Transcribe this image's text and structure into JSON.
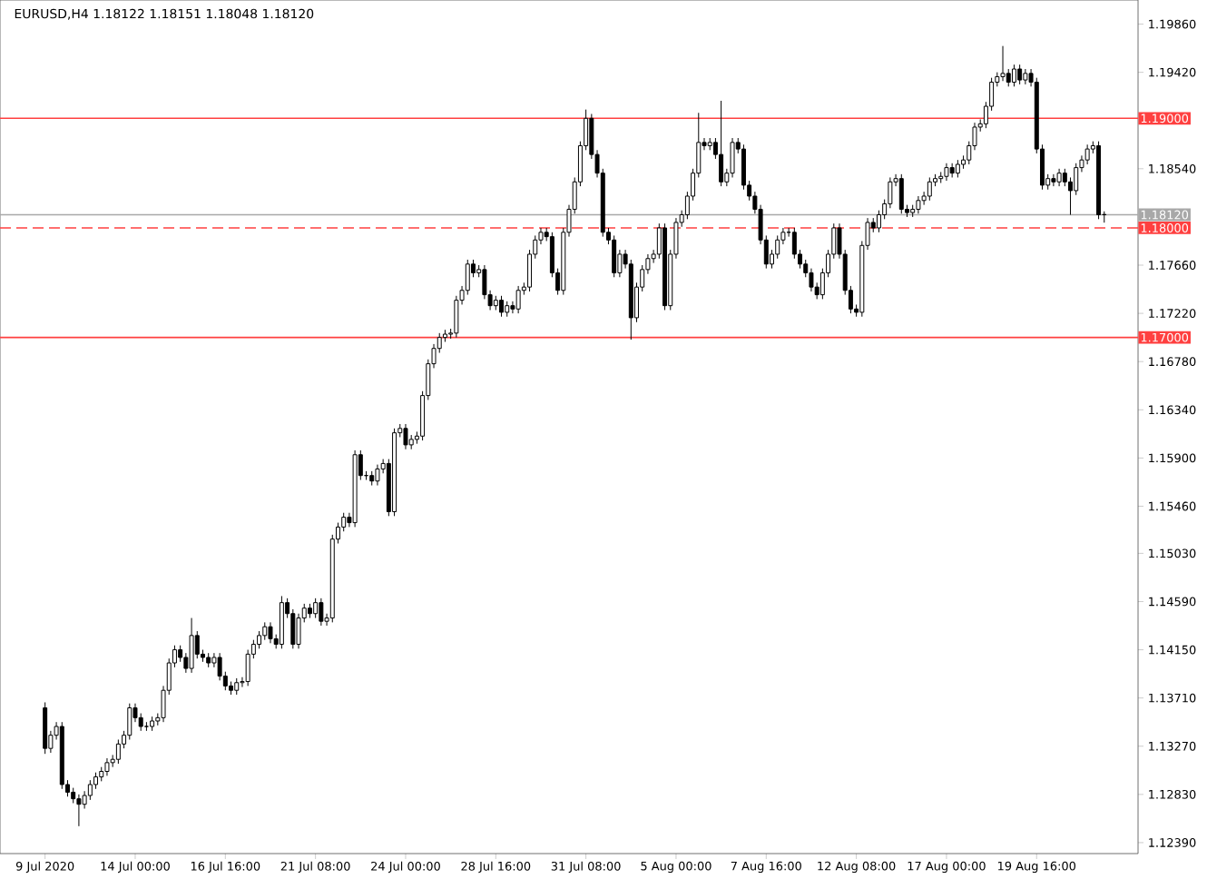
{
  "chart_data": {
    "type": "candlestick",
    "title": "EURUSD,H4  1.18122 1.18151 1.18048 1.18120",
    "categories": [
      "9 Jul 2020",
      null,
      null,
      null,
      null,
      null,
      null,
      null,
      null,
      null,
      null,
      null,
      null,
      null,
      null,
      null,
      "14 Jul 00:00",
      null,
      null,
      null,
      null,
      null,
      null,
      null,
      null,
      null,
      null,
      null,
      null,
      null,
      null,
      null,
      "16 Jul 16:00",
      null,
      null,
      null,
      null,
      null,
      null,
      null,
      null,
      null,
      null,
      null,
      null,
      null,
      null,
      null,
      "21 Jul 08:00",
      null,
      null,
      null,
      null,
      null,
      null,
      null,
      null,
      null,
      null,
      null,
      null,
      null,
      null,
      null,
      "24 Jul 00:00",
      null,
      null,
      null,
      null,
      null,
      null,
      null,
      null,
      null,
      null,
      null,
      null,
      null,
      null,
      null,
      "28 Jul 16:00",
      null,
      null,
      null,
      null,
      null,
      null,
      null,
      null,
      null,
      null,
      null,
      null,
      null,
      null,
      null,
      "31 Jul 08:00",
      null,
      null,
      null,
      null,
      null,
      null,
      null,
      null,
      null,
      null,
      null,
      null,
      null,
      null,
      null,
      "5 Aug 00:00",
      null,
      null,
      null,
      null,
      null,
      null,
      null,
      null,
      null,
      null,
      null,
      null,
      null,
      null,
      null,
      "7 Aug 16:00",
      null,
      null,
      null,
      null,
      null,
      null,
      null,
      null,
      null,
      null,
      null,
      null,
      null,
      null,
      null,
      "12 Aug 08:00",
      null,
      null,
      null,
      null,
      null,
      null,
      null,
      null,
      null,
      null,
      null,
      null,
      null,
      null,
      null,
      "17 Aug 00:00",
      null,
      null,
      null,
      null,
      null,
      null,
      null,
      null,
      null,
      null,
      null,
      null,
      null,
      null,
      null,
      "19 Aug 16:00",
      null,
      null,
      null,
      null,
      null,
      null,
      null,
      null,
      null,
      null,
      null,
      null
    ],
    "ohlc": [
      [
        1.1362,
        1.1367,
        1.132,
        1.1325
      ],
      [
        1.1325,
        1.1341,
        1.1321,
        1.1337
      ],
      [
        1.1337,
        1.1349,
        1.1333,
        1.1345
      ],
      [
        1.1345,
        1.1349,
        1.1288,
        1.1292
      ],
      [
        1.1292,
        1.1296,
        1.1281,
        1.1285
      ],
      [
        1.1285,
        1.1289,
        1.1275,
        1.1279
      ],
      [
        1.1279,
        1.1283,
        1.1254,
        1.1274
      ],
      [
        1.1274,
        1.1286,
        1.127,
        1.1282
      ],
      [
        1.1282,
        1.1296,
        1.1278,
        1.1292
      ],
      [
        1.1292,
        1.1303,
        1.1288,
        1.1299
      ],
      [
        1.1299,
        1.1308,
        1.1295,
        1.1304
      ],
      [
        1.1304,
        1.1316,
        1.13,
        1.1312
      ],
      [
        1.1312,
        1.1319,
        1.1308,
        1.1315
      ],
      [
        1.1315,
        1.1333,
        1.1311,
        1.1329
      ],
      [
        1.1329,
        1.1341,
        1.1325,
        1.1337
      ],
      [
        1.1337,
        1.1366,
        1.1333,
        1.1362
      ],
      [
        1.1362,
        1.1366,
        1.1349,
        1.1353
      ],
      [
        1.1353,
        1.1357,
        1.1341,
        1.1345
      ],
      [
        1.1345,
        1.1349,
        1.1341,
        1.1345
      ],
      [
        1.1345,
        1.1354,
        1.1341,
        1.135
      ],
      [
        1.135,
        1.1357,
        1.1346,
        1.1353
      ],
      [
        1.1353,
        1.1382,
        1.1349,
        1.1378
      ],
      [
        1.1378,
        1.1407,
        1.1374,
        1.1403
      ],
      [
        1.1403,
        1.1419,
        1.1399,
        1.1415
      ],
      [
        1.1415,
        1.1419,
        1.1404,
        1.1408
      ],
      [
        1.1408,
        1.1412,
        1.1394,
        1.1398
      ],
      [
        1.1398,
        1.1444,
        1.1394,
        1.1428
      ],
      [
        1.1428,
        1.1432,
        1.1407,
        1.1411
      ],
      [
        1.1411,
        1.1415,
        1.1404,
        1.1408
      ],
      [
        1.1408,
        1.1412,
        1.1399,
        1.1403
      ],
      [
        1.1403,
        1.1412,
        1.1399,
        1.1408
      ],
      [
        1.1408,
        1.1412,
        1.1387,
        1.1391
      ],
      [
        1.1391,
        1.1395,
        1.1378,
        1.1382
      ],
      [
        1.1382,
        1.1386,
        1.1374,
        1.1378
      ],
      [
        1.1378,
        1.1389,
        1.1374,
        1.1385
      ],
      [
        1.1385,
        1.139,
        1.1381,
        1.1386
      ],
      [
        1.1386,
        1.1415,
        1.1382,
        1.1411
      ],
      [
        1.1411,
        1.1424,
        1.1407,
        1.142
      ],
      [
        1.142,
        1.1432,
        1.1416,
        1.1428
      ],
      [
        1.1428,
        1.144,
        1.1424,
        1.1436
      ],
      [
        1.1436,
        1.144,
        1.1421,
        1.1425
      ],
      [
        1.1425,
        1.1429,
        1.1416,
        1.142
      ],
      [
        1.142,
        1.1464,
        1.1416,
        1.1458
      ],
      [
        1.1458,
        1.1462,
        1.1444,
        1.1448
      ],
      [
        1.1448,
        1.1452,
        1.1416,
        1.142
      ],
      [
        1.142,
        1.1448,
        1.1416,
        1.1444
      ],
      [
        1.1444,
        1.1457,
        1.144,
        1.1453
      ],
      [
        1.1453,
        1.1457,
        1.1444,
        1.1448
      ],
      [
        1.1448,
        1.1462,
        1.1444,
        1.1458
      ],
      [
        1.1458,
        1.1462,
        1.1437,
        1.1441
      ],
      [
        1.1441,
        1.1448,
        1.1437,
        1.1444
      ],
      [
        1.1444,
        1.152,
        1.144,
        1.1516
      ],
      [
        1.1516,
        1.1531,
        1.1512,
        1.1527
      ],
      [
        1.1527,
        1.154,
        1.1523,
        1.1536
      ],
      [
        1.1536,
        1.154,
        1.1527,
        1.1531
      ],
      [
        1.1531,
        1.1597,
        1.1527,
        1.1593
      ],
      [
        1.1593,
        1.1597,
        1.157,
        1.1574
      ],
      [
        1.1574,
        1.1578,
        1.157,
        1.1574
      ],
      [
        1.1574,
        1.1578,
        1.1565,
        1.1569
      ],
      [
        1.1569,
        1.1584,
        1.1565,
        1.158
      ],
      [
        1.158,
        1.1589,
        1.1576,
        1.1585
      ],
      [
        1.1585,
        1.1589,
        1.1537,
        1.1541
      ],
      [
        1.1541,
        1.1617,
        1.1537,
        1.1613
      ],
      [
        1.1613,
        1.1621,
        1.1609,
        1.1617
      ],
      [
        1.1617,
        1.1621,
        1.1598,
        1.1602
      ],
      [
        1.1602,
        1.1611,
        1.1598,
        1.1607
      ],
      [
        1.1607,
        1.1614,
        1.1603,
        1.161
      ],
      [
        1.161,
        1.1651,
        1.1606,
        1.1647
      ],
      [
        1.1647,
        1.168,
        1.1643,
        1.1676
      ],
      [
        1.1676,
        1.1694,
        1.1672,
        1.169
      ],
      [
        1.169,
        1.1704,
        1.1686,
        1.17
      ],
      [
        1.17,
        1.1707,
        1.1696,
        1.1703
      ],
      [
        1.1703,
        1.1708,
        1.1699,
        1.1704
      ],
      [
        1.1704,
        1.1738,
        1.17,
        1.1734
      ],
      [
        1.1734,
        1.1747,
        1.173,
        1.1743
      ],
      [
        1.1743,
        1.1771,
        1.1739,
        1.1767
      ],
      [
        1.1767,
        1.1771,
        1.1755,
        1.1759
      ],
      [
        1.1759,
        1.1766,
        1.1755,
        1.1762
      ],
      [
        1.1762,
        1.1766,
        1.1735,
        1.1739
      ],
      [
        1.1739,
        1.1743,
        1.1725,
        1.1729
      ],
      [
        1.1729,
        1.1738,
        1.1725,
        1.1734
      ],
      [
        1.1734,
        1.1738,
        1.1719,
        1.1723
      ],
      [
        1.1723,
        1.1733,
        1.1719,
        1.1729
      ],
      [
        1.1729,
        1.1733,
        1.1722,
        1.1726
      ],
      [
        1.1726,
        1.1747,
        1.1722,
        1.1743
      ],
      [
        1.1743,
        1.175,
        1.1739,
        1.1746
      ],
      [
        1.1746,
        1.178,
        1.1742,
        1.1776
      ],
      [
        1.1776,
        1.1793,
        1.1772,
        1.1789
      ],
      [
        1.1789,
        1.18,
        1.1785,
        1.1796
      ],
      [
        1.1796,
        1.18,
        1.1788,
        1.1792
      ],
      [
        1.1792,
        1.1796,
        1.1755,
        1.1759
      ],
      [
        1.1759,
        1.1763,
        1.1739,
        1.1743
      ],
      [
        1.1743,
        1.18,
        1.1739,
        1.1796
      ],
      [
        1.1796,
        1.1821,
        1.1792,
        1.1817
      ],
      [
        1.1817,
        1.1846,
        1.1813,
        1.1842
      ],
      [
        1.1842,
        1.1879,
        1.1838,
        1.1875
      ],
      [
        1.1875,
        1.1908,
        1.1871,
        1.19
      ],
      [
        1.19,
        1.1904,
        1.1863,
        1.1867
      ],
      [
        1.1867,
        1.1871,
        1.1846,
        1.185
      ],
      [
        1.185,
        1.1854,
        1.1792,
        1.1796
      ],
      [
        1.1796,
        1.18,
        1.1785,
        1.1789
      ],
      [
        1.1789,
        1.1793,
        1.1755,
        1.1759
      ],
      [
        1.1759,
        1.178,
        1.1755,
        1.1776
      ],
      [
        1.1776,
        1.178,
        1.1763,
        1.1767
      ],
      [
        1.1767,
        1.1771,
        1.1698,
        1.1718
      ],
      [
        1.1718,
        1.175,
        1.1714,
        1.1746
      ],
      [
        1.1746,
        1.1766,
        1.1742,
        1.1762
      ],
      [
        1.1762,
        1.1776,
        1.1758,
        1.1772
      ],
      [
        1.1772,
        1.178,
        1.1768,
        1.1776
      ],
      [
        1.1776,
        1.1804,
        1.1772,
        1.18
      ],
      [
        1.18,
        1.1804,
        1.1725,
        1.1729
      ],
      [
        1.1729,
        1.178,
        1.1725,
        1.1776
      ],
      [
        1.1776,
        1.1809,
        1.1772,
        1.1805
      ],
      [
        1.1805,
        1.1816,
        1.1801,
        1.1812
      ],
      [
        1.1812,
        1.1833,
        1.1808,
        1.1829
      ],
      [
        1.1829,
        1.1854,
        1.1825,
        1.185
      ],
      [
        1.185,
        1.1905,
        1.1846,
        1.1878
      ],
      [
        1.1878,
        1.1882,
        1.1871,
        1.1875
      ],
      [
        1.1875,
        1.1882,
        1.1871,
        1.1878
      ],
      [
        1.1878,
        1.1882,
        1.1863,
        1.1867
      ],
      [
        1.1867,
        1.1916,
        1.1838,
        1.1842
      ],
      [
        1.1842,
        1.1854,
        1.1838,
        1.185
      ],
      [
        1.185,
        1.1882,
        1.1846,
        1.1878
      ],
      [
        1.1878,
        1.1882,
        1.1868,
        1.1872
      ],
      [
        1.1872,
        1.1876,
        1.1835,
        1.1839
      ],
      [
        1.1839,
        1.1843,
        1.1825,
        1.1829
      ],
      [
        1.1829,
        1.1833,
        1.1813,
        1.1817
      ],
      [
        1.1817,
        1.1821,
        1.1785,
        1.1789
      ],
      [
        1.1789,
        1.1793,
        1.1763,
        1.1767
      ],
      [
        1.1767,
        1.178,
        1.1763,
        1.1776
      ],
      [
        1.1776,
        1.1793,
        1.1772,
        1.1789
      ],
      [
        1.1789,
        1.18,
        1.1785,
        1.1796
      ],
      [
        1.1796,
        1.18,
        1.1792,
        1.1796
      ],
      [
        1.1796,
        1.18,
        1.1772,
        1.1776
      ],
      [
        1.1776,
        1.178,
        1.1763,
        1.1767
      ],
      [
        1.1767,
        1.1771,
        1.1755,
        1.1759
      ],
      [
        1.1759,
        1.1763,
        1.1742,
        1.1746
      ],
      [
        1.1746,
        1.175,
        1.1735,
        1.1739
      ],
      [
        1.1739,
        1.1763,
        1.1735,
        1.1759
      ],
      [
        1.1759,
        1.178,
        1.1755,
        1.1776
      ],
      [
        1.1776,
        1.1804,
        1.1772,
        1.18
      ],
      [
        1.18,
        1.1804,
        1.1772,
        1.1776
      ],
      [
        1.1776,
        1.178,
        1.1739,
        1.1743
      ],
      [
        1.1743,
        1.1747,
        1.1722,
        1.1726
      ],
      [
        1.1726,
        1.173,
        1.1719,
        1.1723
      ],
      [
        1.1723,
        1.1788,
        1.1719,
        1.1784
      ],
      [
        1.1784,
        1.1809,
        1.178,
        1.1805
      ],
      [
        1.1805,
        1.1809,
        1.1796,
        1.18
      ],
      [
        1.18,
        1.1816,
        1.1796,
        1.1812
      ],
      [
        1.1812,
        1.1826,
        1.1808,
        1.1822
      ],
      [
        1.1822,
        1.1846,
        1.1818,
        1.1842
      ],
      [
        1.1842,
        1.1849,
        1.1838,
        1.1845
      ],
      [
        1.1845,
        1.1849,
        1.1813,
        1.1817
      ],
      [
        1.1817,
        1.1821,
        1.181,
        1.1814
      ],
      [
        1.1814,
        1.1821,
        1.181,
        1.1817
      ],
      [
        1.1817,
        1.1829,
        1.1813,
        1.1825
      ],
      [
        1.1825,
        1.1833,
        1.1821,
        1.1829
      ],
      [
        1.1829,
        1.1846,
        1.1825,
        1.1842
      ],
      [
        1.1842,
        1.1849,
        1.1838,
        1.1845
      ],
      [
        1.1845,
        1.1851,
        1.1841,
        1.1847
      ],
      [
        1.1847,
        1.1859,
        1.1843,
        1.1855
      ],
      [
        1.1855,
        1.1859,
        1.1846,
        1.185
      ],
      [
        1.185,
        1.1862,
        1.1846,
        1.1858
      ],
      [
        1.1858,
        1.1866,
        1.1854,
        1.1862
      ],
      [
        1.1862,
        1.1879,
        1.1858,
        1.1875
      ],
      [
        1.1875,
        1.1896,
        1.1871,
        1.1892
      ],
      [
        1.1892,
        1.1899,
        1.1888,
        1.1895
      ],
      [
        1.1895,
        1.1915,
        1.1891,
        1.1911
      ],
      [
        1.1911,
        1.1937,
        1.1907,
        1.1933
      ],
      [
        1.1933,
        1.1942,
        1.1929,
        1.1938
      ],
      [
        1.1938,
        1.1966,
        1.1934,
        1.1941
      ],
      [
        1.1941,
        1.1945,
        1.1929,
        1.1933
      ],
      [
        1.1933,
        1.1949,
        1.1929,
        1.1945
      ],
      [
        1.1945,
        1.1949,
        1.1931,
        1.1935
      ],
      [
        1.1935,
        1.1945,
        1.1931,
        1.1941
      ],
      [
        1.1941,
        1.1945,
        1.1929,
        1.1933
      ],
      [
        1.1933,
        1.1937,
        1.1868,
        1.1872
      ],
      [
        1.1872,
        1.1876,
        1.1835,
        1.1839
      ],
      [
        1.1839,
        1.1849,
        1.1835,
        1.1845
      ],
      [
        1.1845,
        1.1849,
        1.1838,
        1.1842
      ],
      [
        1.1842,
        1.1854,
        1.1838,
        1.185
      ],
      [
        1.185,
        1.1854,
        1.1838,
        1.1842
      ],
      [
        1.1842,
        1.1846,
        1.1812,
        1.1834
      ],
      [
        1.1834,
        1.1859,
        1.183,
        1.1855
      ],
      [
        1.1855,
        1.1866,
        1.1851,
        1.1862
      ],
      [
        1.1862,
        1.1876,
        1.1858,
        1.1872
      ],
      [
        1.1872,
        1.1879,
        1.1868,
        1.1875
      ],
      [
        1.1875,
        1.1879,
        1.1808,
        1.1812
      ],
      [
        1.18122,
        1.18151,
        1.18048,
        1.1812
      ]
    ],
    "ylim": [
      1.1229,
      1.2008
    ],
    "yticks": [
      {
        "value": 1.1986,
        "label": "1.19860"
      },
      {
        "value": 1.1942,
        "label": "1.19420"
      },
      {
        "value": 1.1854,
        "label": "1.18540"
      },
      {
        "value": 1.1766,
        "label": "1.17660"
      },
      {
        "value": 1.1722,
        "label": "1.17220"
      },
      {
        "value": 1.1678,
        "label": "1.16780"
      },
      {
        "value": 1.1634,
        "label": "1.16340"
      },
      {
        "value": 1.159,
        "label": "1.15900"
      },
      {
        "value": 1.1546,
        "label": "1.15460"
      },
      {
        "value": 1.1503,
        "label": "1.15030"
      },
      {
        "value": 1.1459,
        "label": "1.14590"
      },
      {
        "value": 1.1415,
        "label": "1.14150"
      },
      {
        "value": 1.1371,
        "label": "1.13710"
      },
      {
        "value": 1.1327,
        "label": "1.13270"
      },
      {
        "value": 1.1283,
        "label": "1.12830"
      },
      {
        "value": 1.1239,
        "label": "1.12390"
      }
    ],
    "ref_lines": [
      {
        "axis": "y",
        "value": 1.19,
        "label": "1.19000",
        "color": "#ff4040"
      },
      {
        "axis": "y",
        "value": 1.18,
        "label": "1.18000",
        "color": "#ff4040",
        "line_style": "dashed"
      },
      {
        "axis": "y",
        "value": 1.17,
        "label": "1.17000",
        "color": "#ff4040"
      },
      {
        "axis": "y",
        "value": 1.1812,
        "label": "1.18120",
        "color": "#a8a8a8"
      }
    ]
  }
}
